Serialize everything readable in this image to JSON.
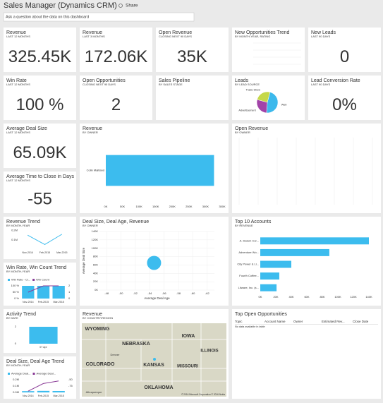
{
  "header": {
    "title": "Sales Manager (Dynamics CRM)",
    "share": "Share",
    "search": "Ask a question about the data on this dashboard"
  },
  "tiles": [
    {
      "title": "Revenue",
      "subtitle": "LAST 12 MONTHS",
      "value": "325.45K"
    },
    {
      "title": "Revenue",
      "subtitle": "LAST 3 MONTHS",
      "value": "172.06K"
    },
    {
      "title": "Open Revenue",
      "subtitle": "CLOSING NEXT 90 DAYS",
      "value": "35K"
    },
    {
      "title": "New Opportunities Trend",
      "subtitle": "BY MONTH-YEAR, RATING"
    },
    {
      "title": "New Leads",
      "subtitle": "LAST 90 DAYS",
      "value": "0"
    },
    {
      "title": "Win Rate",
      "subtitle": "LAST 12 MONTHS",
      "value": "100 %"
    },
    {
      "title": "Open Opportunities",
      "subtitle": "CLOSING NEXT 90 DAYS",
      "value": "2"
    },
    {
      "title": "Sales Pipeline",
      "subtitle": "BY SALES STAGE"
    },
    {
      "title": "Leads",
      "subtitle": "BY LEAD SOURCE",
      "chart": {
        "type": "pie",
        "categories": [
          "Web",
          "Advertisement",
          "Trade Show"
        ],
        "values": [
          47,
          28,
          25
        ],
        "colors": [
          "#3cb9ec",
          "#a243a8",
          "#c5d84a"
        ]
      }
    },
    {
      "title": "Lead Conversion Rate",
      "subtitle": "LAST 90 DAYS",
      "value": "0%"
    },
    {
      "title": "Average Deal Size",
      "subtitle": "LAST 12 MONTHS",
      "value": "65.09K"
    },
    {
      "title": "Average Time to Close in Days",
      "subtitle": "LAST 12 MONTHS",
      "value": "-55"
    },
    {
      "title": "Revenue",
      "subtitle": "BY OWNER",
      "chart": {
        "type": "hbar",
        "categories": [
          "Colin Maitland"
        ],
        "values": [
          325450
        ],
        "color": "#3cbcee",
        "xlim": [
          0,
          350000
        ],
        "xticks": [
          {
            "value": 0,
            "label": "0K"
          },
          {
            "value": 50000,
            "label": "50K"
          },
          {
            "value": 100000,
            "label": "100K"
          },
          {
            "value": 150000,
            "label": "150K"
          },
          {
            "value": 200000,
            "label": "200K"
          },
          {
            "value": 250000,
            "label": "250K"
          },
          {
            "value": 300000,
            "label": "300K"
          },
          {
            "value": 350000,
            "label": "350K"
          }
        ]
      }
    },
    {
      "title": "Open Revenue",
      "subtitle": "BY OWNER"
    },
    {
      "title": "Revenue Trend",
      "subtitle": "BY MONTH-YEAR",
      "chart": {
        "type": "combo",
        "categories": [
          "Nov-2014",
          "Feb-2015",
          "Mar-2015"
        ],
        "series": [
          {
            "type": "line",
            "color": "#3cbcee",
            "values": [
              150000,
              50000,
              160000
            ]
          }
        ],
        "ylim": [
          0,
          250000
        ],
        "yticks": [
          {
            "value": 200000,
            "label": "0.2M"
          },
          {
            "value": 100000,
            "label": "0.1M"
          }
        ]
      }
    },
    {
      "title": "Win Rate, Win Count Trend",
      "subtitle": "BY MONTH-YEAR",
      "chart": {
        "type": "combo",
        "categories": [
          "Nov-2014",
          "Feb-2015",
          "Mar-2015"
        ],
        "series": [
          {
            "name": "Win Rate - Cl...",
            "type": "bar",
            "color": "#3cbcee",
            "values": [
              100,
              100,
              100
            ]
          },
          {
            "name": "Win Count",
            "type": "line",
            "axis": "y2",
            "color": "#8a3b97",
            "values": [
              1,
              2,
              2
            ]
          }
        ],
        "ylim": [
          0,
          100
        ],
        "yticks": [
          {
            "value": 100,
            "label": "100 %"
          },
          {
            "value": 50,
            "label": "50 %"
          },
          {
            "value": 0,
            "label": "0 %"
          }
        ],
        "y2lim": [
          0,
          2
        ],
        "y2ticks": [
          2,
          1,
          0
        ]
      }
    },
    {
      "title": "Deal Size, Deal Age, Revenue",
      "subtitle": "BY OWNER",
      "chart": {
        "type": "scatter",
        "x": [
          -54.6
        ],
        "y": [
          65000
        ],
        "color": "#3cbcee",
        "xlim": [
          -47,
          -63
        ],
        "xticks": [
          -48,
          -50,
          -52,
          -54,
          -56,
          -58,
          -60,
          -62
        ],
        "ylim": [
          0,
          140000
        ],
        "yticks": [
          {
            "value": 140000,
            "label": "140K"
          },
          {
            "value": 120000,
            "label": "120K"
          },
          {
            "value": 100000,
            "label": "100K"
          },
          {
            "value": 80000,
            "label": "80K"
          },
          {
            "value": 60000,
            "label": "60K"
          },
          {
            "value": 40000,
            "label": "40K"
          },
          {
            "value": 20000,
            "label": "20K"
          },
          {
            "value": 0,
            "label": "0K"
          }
        ],
        "x_label": "Average Deal Age",
        "y_label": "Average Deal Size"
      }
    },
    {
      "title": "Top 10 Accounts",
      "subtitle": "BY REVENUE",
      "chart": {
        "type": "hbar",
        "categories": [
          "A. Datum Cor...",
          "Adventure Wo...",
          "City Power & Li...",
          "Fourth Coffee...",
          "Litware, Inc. (s..."
        ],
        "values": [
          140000,
          89000,
          40000,
          24500,
          21000
        ],
        "color": "#3cbcee",
        "xlim": [
          0,
          140000
        ],
        "xticks": [
          {
            "value": 0,
            "label": "0K"
          },
          {
            "value": 20000,
            "label": "20K"
          },
          {
            "value": 40000,
            "label": "40K"
          },
          {
            "value": 60000,
            "label": "60K"
          },
          {
            "value": 80000,
            "label": "80K"
          },
          {
            "value": 100000,
            "label": "100K"
          },
          {
            "value": 120000,
            "label": "120K"
          },
          {
            "value": 140000,
            "label": "140K"
          }
        ]
      }
    },
    {
      "title": "Activity Trend",
      "subtitle": "BY DATE",
      "chart": {
        "type": "combo",
        "categories": [
          "07 Apr"
        ],
        "series": [
          {
            "type": "bar",
            "color": "#3cbcee",
            "values": [
              2
            ]
          }
        ],
        "ylim": [
          0,
          2
        ],
        "yticks": [
          2,
          0
        ]
      }
    },
    {
      "title": "Deal Size, Deal Age Trend",
      "subtitle": "BY MONTH-YEAR",
      "chart": {
        "type": "combo",
        "categories": [
          "Nov-2014",
          "Feb-2015",
          "Mar-2015"
        ],
        "series": [
          {
            "name": "Average Deal...",
            "type": "bar",
            "color": "#3cbcee",
            "values": [
              20000,
              24000,
              22000
            ]
          },
          {
            "name": "Average Deal...",
            "type": "line",
            "axis": "y2",
            "color": "#8a3b97",
            "values": [
              -95,
              -65,
              -55
            ]
          }
        ],
        "ylim": [
          0,
          200000
        ],
        "yticks": [
          {
            "value": 200000,
            "label": "0.2M"
          },
          {
            "value": 100000,
            "label": "0.1M"
          },
          {
            "value": 0,
            "label": "0.0M"
          }
        ],
        "y2lim": [
          -100,
          -50
        ],
        "y2ticks": [
          -50,
          -75
        ]
      }
    },
    {
      "title": "Revenue",
      "subtitle": "BY COUNTRY/REGION",
      "chart": {
        "type": "map",
        "labels": [
          "WYOMING",
          "NEBRASKA",
          "IOWA",
          "ILLINOIS",
          "Denver",
          "COLORADO",
          "KANSAS",
          "MISSOURI",
          "OKLAHOMA",
          "Albuquerque"
        ],
        "copyright": "© 2016 Microsoft Corporation  © 2016 Nokia"
      }
    },
    {
      "title": "Top Open Opportunities",
      "chart": {
        "type": "table",
        "columns": [
          "Topic",
          "Account Name",
          "Owner",
          "Estimated Rev...",
          "Close Date"
        ],
        "empty": "No data available in table"
      }
    }
  ]
}
